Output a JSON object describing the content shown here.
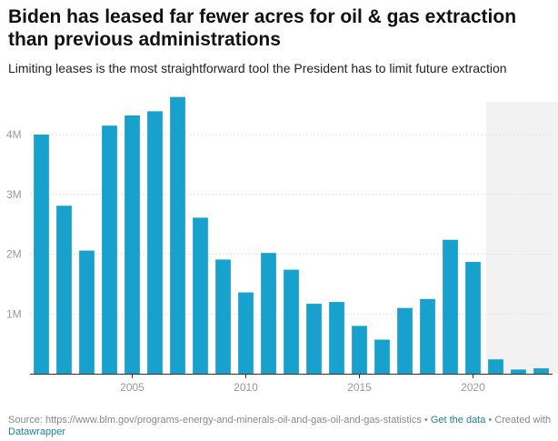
{
  "chart_data": {
    "type": "bar",
    "title": "Biden has leased far fewer acres for oil & gas extraction than previous administrations",
    "subtitle": "Limiting leases is the most straightforward tool the President has to limit future extraction",
    "x": [
      2001,
      2002,
      2003,
      2004,
      2005,
      2006,
      2007,
      2008,
      2009,
      2010,
      2011,
      2012,
      2013,
      2014,
      2015,
      2016,
      2017,
      2018,
      2019,
      2020,
      2021,
      2022,
      2023
    ],
    "values": [
      4000000,
      2810000,
      2060000,
      4150000,
      4320000,
      4390000,
      4630000,
      2610000,
      1910000,
      1360000,
      2020000,
      1740000,
      1170000,
      1200000,
      800000,
      570000,
      1100000,
      1250000,
      2240000,
      1870000,
      240000,
      70000,
      90000
    ],
    "ylim": [
      0,
      4700000
    ],
    "yticks": [
      1000000,
      2000000,
      3000000,
      4000000
    ],
    "ytick_labels": [
      "1M",
      "2M",
      "3M",
      "4M"
    ],
    "xticks": [
      2005,
      2010,
      2015,
      2020
    ],
    "xtick_labels": [
      "2005",
      "2010",
      "2015",
      "2020"
    ],
    "highlight_range": [
      2021,
      2023
    ],
    "grid": true,
    "bar_color": "#18a1cd",
    "highlight_color": "#f2f2f2"
  },
  "footer": {
    "source": "Source: https://www.blm.gov/programs-energy-and-minerals-oil-and-gas-oil-and-gas-statistics",
    "sep1": " • ",
    "get_data": "Get the data",
    "sep2": " • Created with ",
    "datawrapper": "Datawrapper"
  }
}
